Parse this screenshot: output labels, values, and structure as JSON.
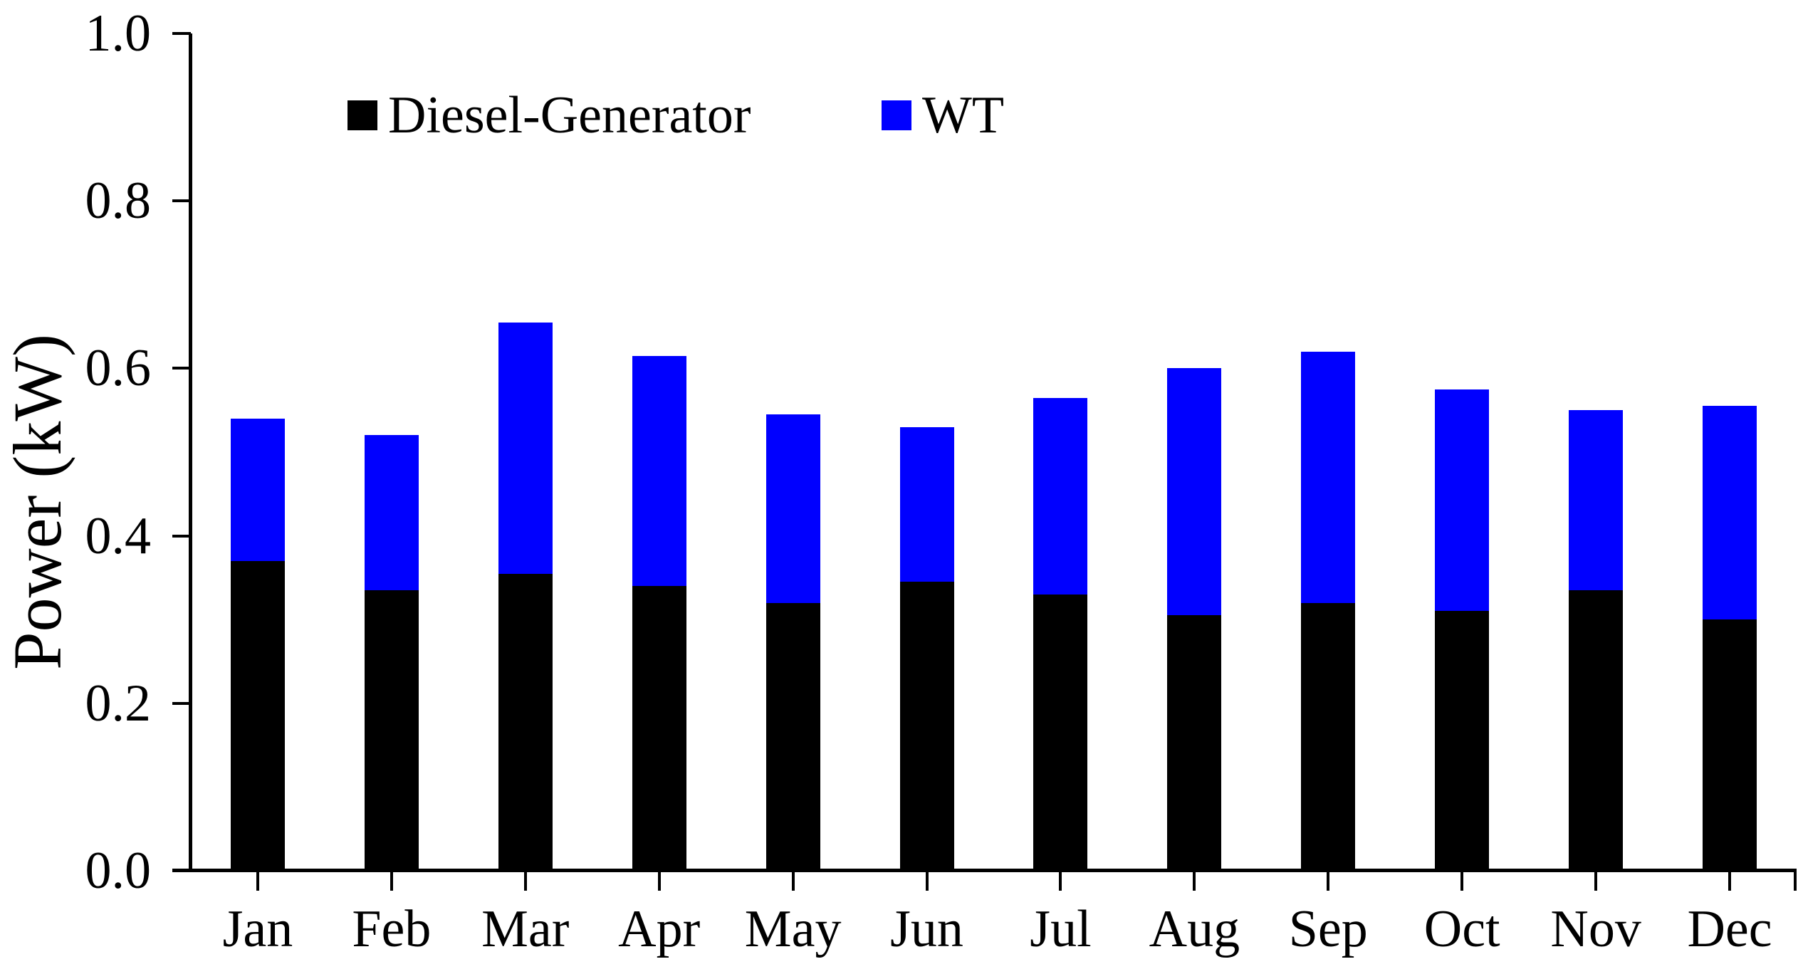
{
  "chart_data": {
    "type": "bar",
    "stacked": true,
    "title": "",
    "xlabel": "",
    "ylabel": "Power (kW)",
    "ylim": [
      0.0,
      1.0
    ],
    "yticks": [
      "0.0",
      "0.2",
      "0.4",
      "0.6",
      "0.8",
      "1.0"
    ],
    "grid": false,
    "legend_position": "top-inside",
    "background_color": "#ffffff",
    "categories": [
      "Jan",
      "Feb",
      "Mar",
      "Apr",
      "May",
      "Jun",
      "Jul",
      "Aug",
      "Sep",
      "Oct",
      "Nov",
      "Dec"
    ],
    "series": [
      {
        "name": "Diesel-Generator",
        "color": "#000000",
        "values": [
          0.37,
          0.335,
          0.355,
          0.34,
          0.32,
          0.345,
          0.33,
          0.305,
          0.32,
          0.31,
          0.335,
          0.3
        ]
      },
      {
        "name": "WT",
        "color": "#0000ff",
        "values": [
          0.17,
          0.185,
          0.3,
          0.275,
          0.225,
          0.185,
          0.235,
          0.295,
          0.3,
          0.265,
          0.215,
          0.255
        ]
      }
    ]
  }
}
